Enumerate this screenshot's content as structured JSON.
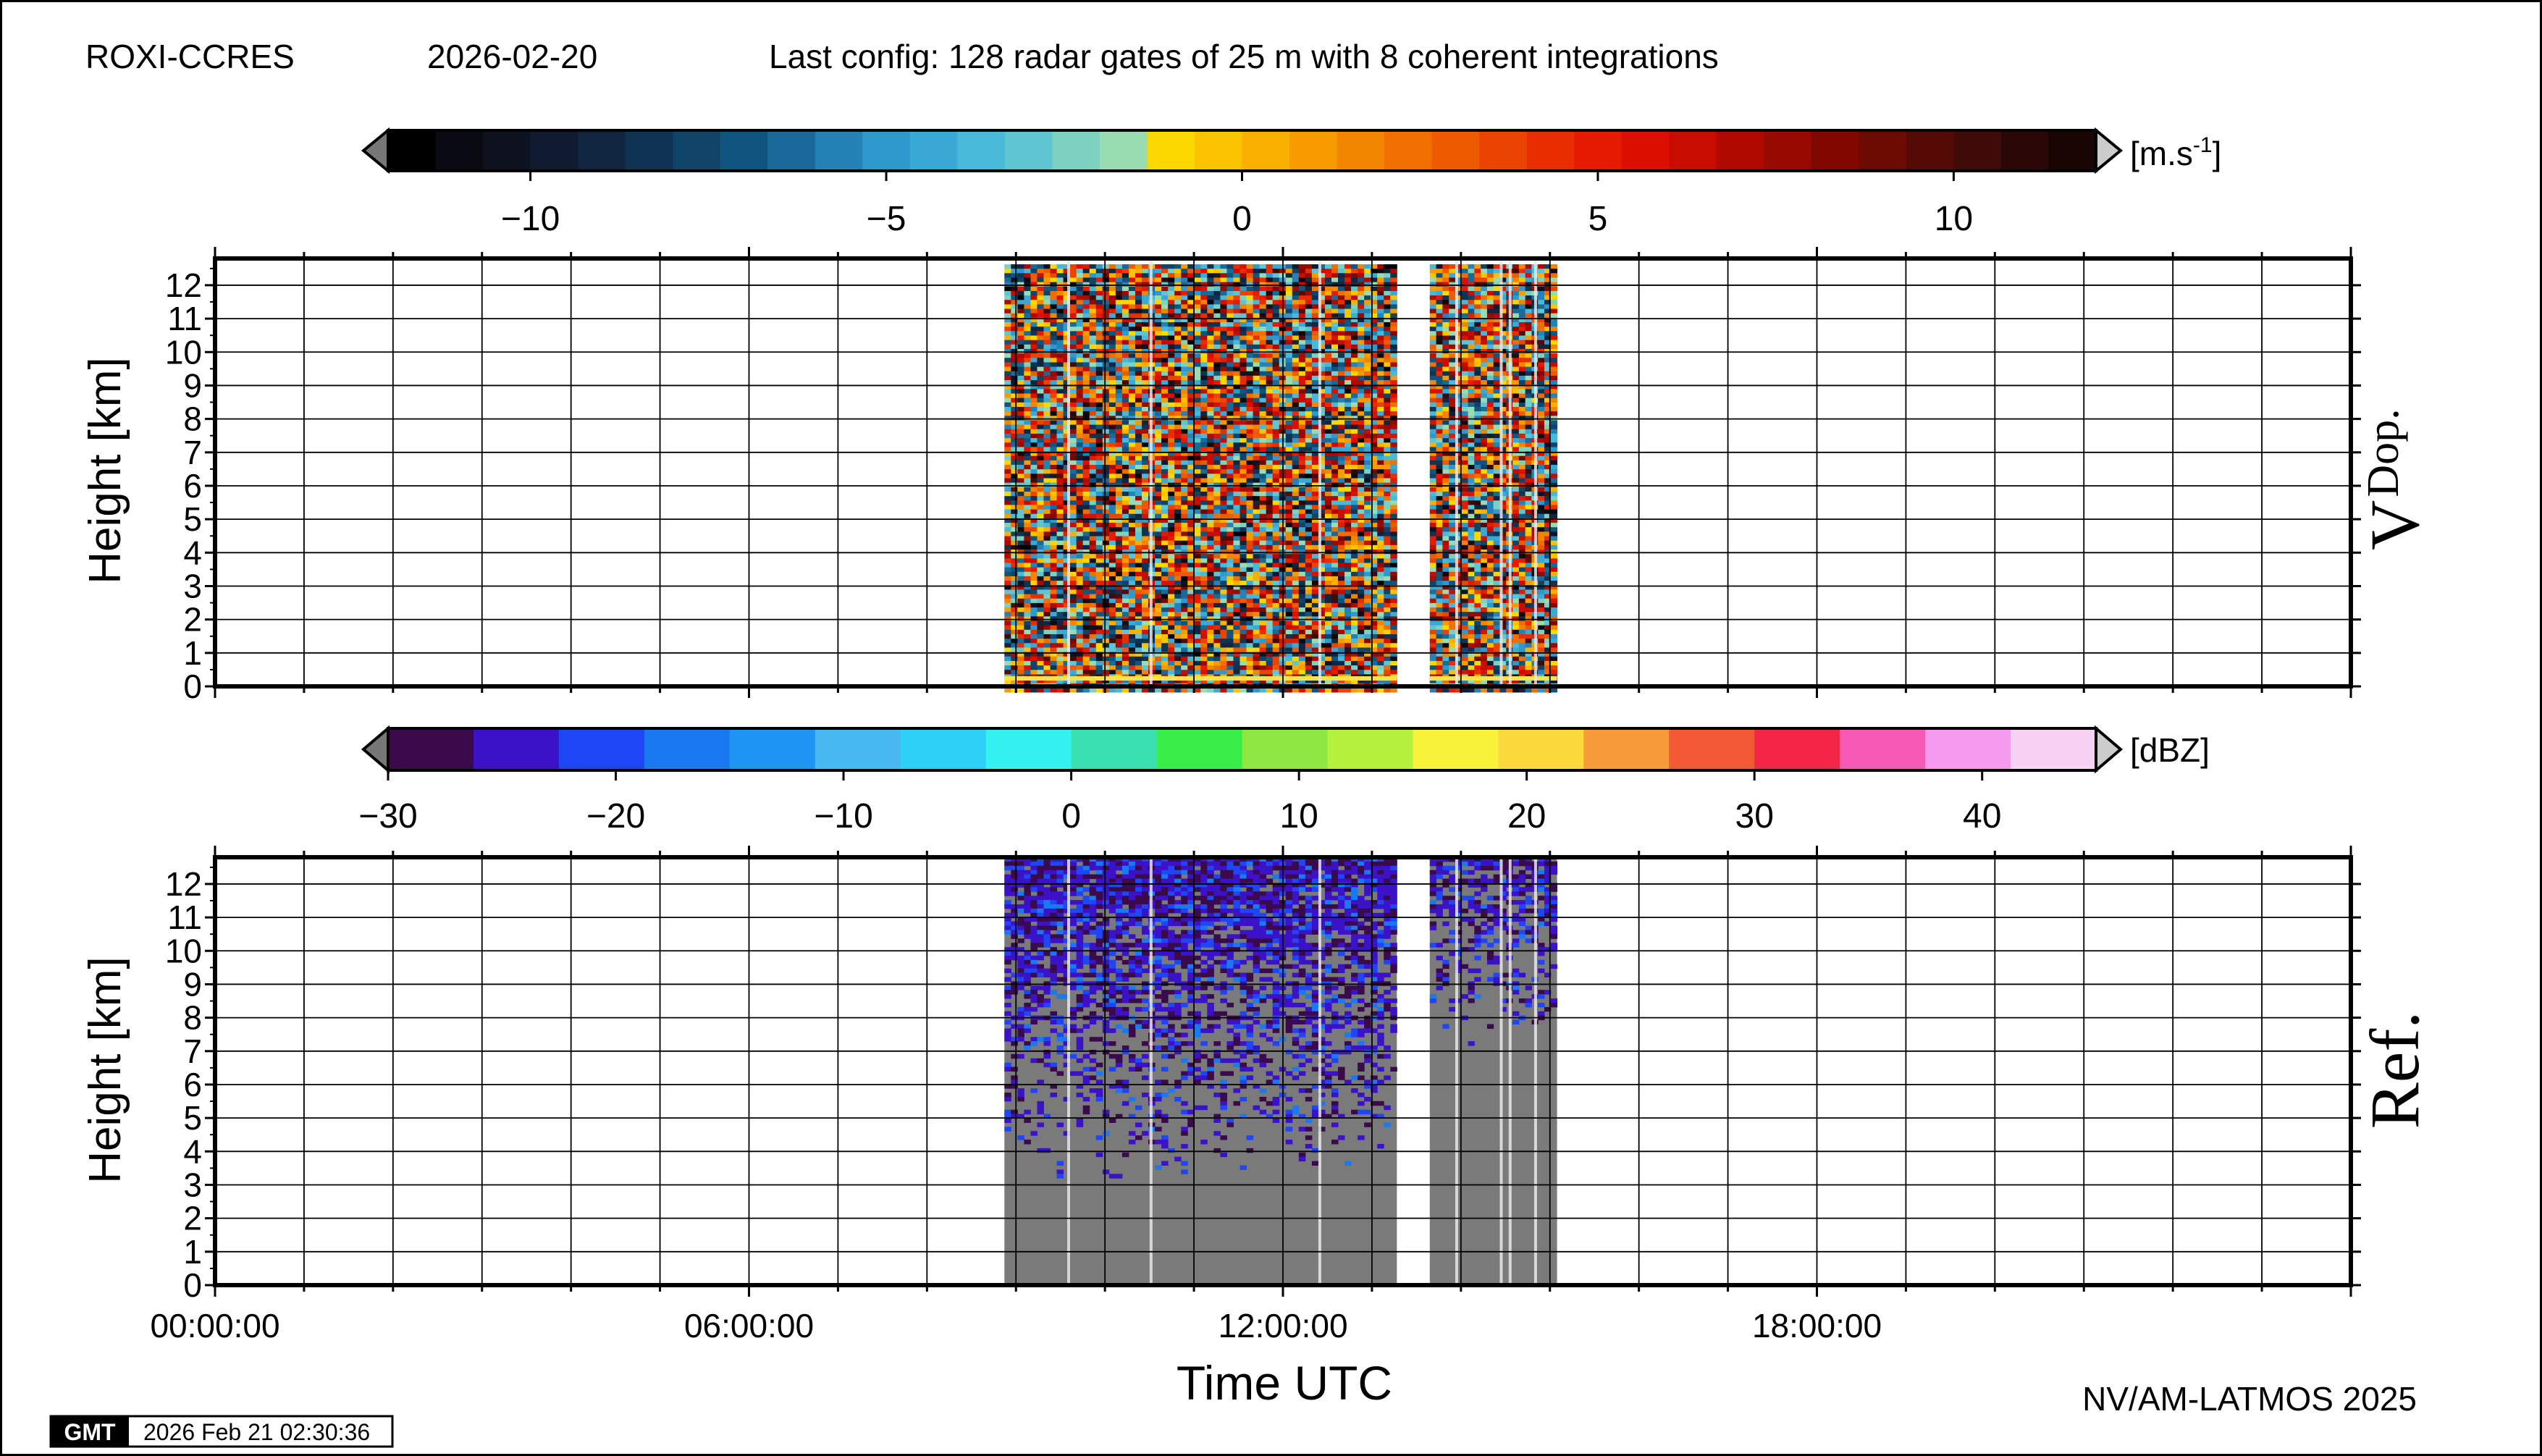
{
  "header": {
    "site": "ROXI-CCRES",
    "date": "2026-02-20",
    "config": "Last config: 128 radar gates of 25 m with 8 coherent integrations"
  },
  "footer": {
    "credit": "NV/AM-LATMOS 2025",
    "gmt_logo": "GMT",
    "timestamp": "2026 Feb 21 02:30:36"
  },
  "colors": {
    "gap": "#ffffff",
    "gray_fill": "#7a7a7a"
  },
  "chart_data": [
    {
      "type": "heatmap",
      "panel_label": "V",
      "panel_label_sub": "Dop.",
      "ylabel": "Height [km]",
      "xlabel": "",
      "yticks": [
        "0",
        "1",
        "2",
        "3",
        "4",
        "5",
        "6",
        "7",
        "8",
        "9",
        "10",
        "11",
        "12"
      ],
      "ylim": [
        0,
        12.8
      ],
      "xlim_hours": [
        0,
        24
      ],
      "grid": true,
      "data_segments_hours": [
        [
          8.87,
          13.28
        ],
        [
          13.65,
          15.08
        ]
      ],
      "colorbar": {
        "unit": "[m.s",
        "unit_exp": "-1",
        "unit_close": "]",
        "range": [
          -12,
          12
        ],
        "ticks": [
          "−10",
          "−5",
          "0",
          "5",
          "10"
        ],
        "tick_values": [
          -10,
          -5,
          0,
          5,
          10
        ],
        "palette": [
          "#000000",
          "#0a0a12",
          "#0e1220",
          "#101a30",
          "#102540",
          "#0f3352",
          "#0f4367",
          "#10557f",
          "#1a6a99",
          "#2582b6",
          "#2f98cc",
          "#3aa9d6",
          "#4ab8d8",
          "#5fc5d2",
          "#7dd1c0",
          "#99dcb1",
          "#fcd700",
          "#fbc300",
          "#f9b000",
          "#f69b00",
          "#f38600",
          "#f06f00",
          "#ed5a00",
          "#eb4300",
          "#e82d00",
          "#e51a00",
          "#dc0f00",
          "#c80c00",
          "#b00a00",
          "#980900",
          "#800800",
          "#6a0a00",
          "#540a05",
          "#400a08",
          "#2c0707",
          "#1a0505"
        ]
      }
    },
    {
      "type": "heatmap",
      "panel_label": "Ref.",
      "ylabel": "Height [km]",
      "xlabel": "Time UTC",
      "yticks": [
        "0",
        "1",
        "2",
        "3",
        "4",
        "5",
        "6",
        "7",
        "8",
        "9",
        "10",
        "11",
        "12"
      ],
      "xticks": [
        "00:00:00",
        "06:00:00",
        "12:00:00",
        "18:00:00"
      ],
      "xtick_hours": [
        0,
        6,
        12,
        18
      ],
      "ylim": [
        0,
        12.8
      ],
      "xlim_hours": [
        0,
        24
      ],
      "grid": true,
      "data_segments_hours": [
        [
          8.87,
          13.28
        ],
        [
          13.65,
          15.08
        ]
      ],
      "colorbar": {
        "unit": "[dBZ]",
        "range": [
          -30,
          45
        ],
        "ticks": [
          "−30",
          "−20",
          "−10",
          "0",
          "10",
          "20",
          "30",
          "40"
        ],
        "tick_values": [
          -30,
          -20,
          -10,
          0,
          10,
          20,
          30,
          40
        ],
        "palette": [
          "#3a0a4a",
          "#3c12c8",
          "#1e46f5",
          "#1a78f0",
          "#1c96f2",
          "#48b8f2",
          "#2fd0f5",
          "#35f2f2",
          "#3ae0b0",
          "#3aed48",
          "#8ee842",
          "#b4f03c",
          "#f8f23a",
          "#fbd83c",
          "#f79a3a",
          "#f25a36",
          "#f42648",
          "#f75ab4",
          "#f69af0",
          "#f8d2f5"
        ]
      }
    }
  ]
}
